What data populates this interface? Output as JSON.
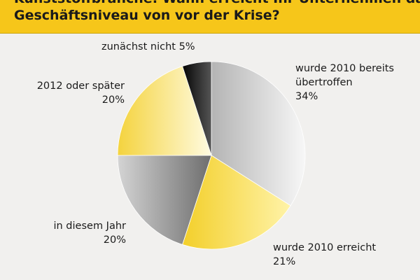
{
  "header": {
    "title_line1": "Kunststoffbranche: Wann erreicht Ihr Unternehmen das",
    "title_line2": "Geschäftsniveau von vor der Krise?"
  },
  "chart_data": {
    "type": "pie",
    "title": "Kunststoffbranche: Wann erreicht Ihr Unternehmen das Geschäftsniveau von vor der Krise?",
    "slices": [
      {
        "label": "wurde 2010 bereits übertroffen",
        "value": 34,
        "value_label": "34%",
        "color": "#c9c9c9"
      },
      {
        "label": "wurde 2010 erreicht",
        "value": 21,
        "value_label": "21%",
        "color": "#f6d84a"
      },
      {
        "label": "in diesem Jahr",
        "value": 20,
        "value_label": "20%",
        "color": "#8c8c8c"
      },
      {
        "label": "2012 oder später",
        "value": 20,
        "value_label": "20%",
        "color": "#f1dc6a"
      },
      {
        "label": "zunächst nicht",
        "value": 5,
        "value_label": "5%",
        "color": "#151515"
      }
    ],
    "start_angle_deg": 0,
    "direction": "clockwise"
  },
  "labels": {
    "uebertroffen": {
      "line1": "wurde 2010 bereits",
      "line2": "übertroffen",
      "line3": "34%"
    },
    "erreicht": {
      "line1": "wurde 2010 erreicht",
      "line2": "21%"
    },
    "diesem_jahr": {
      "line1": "in diesem Jahr",
      "line2": "20%"
    },
    "spaeter": {
      "line1": "2012 oder später",
      "line2": "20%"
    },
    "nicht": {
      "line1": "zunächst nicht 5%"
    }
  }
}
